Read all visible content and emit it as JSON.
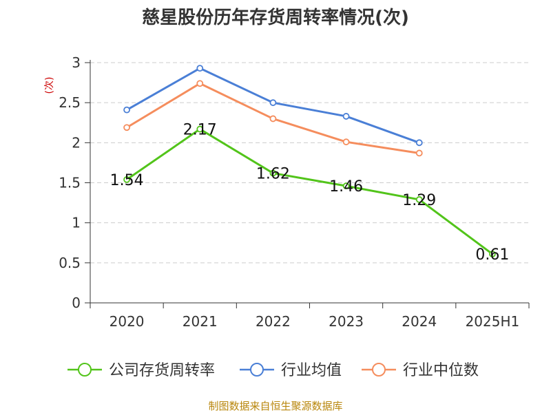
{
  "chart_data": {
    "type": "line",
    "title": "慈星股份历年存货周转率情况(次)",
    "ylabel": "(次)",
    "categories": [
      "2020",
      "2021",
      "2022",
      "2023",
      "2024",
      "2025H1"
    ],
    "ylim": [
      0,
      3
    ],
    "yticks": [
      "0",
      "0.5",
      "1",
      "1.5",
      "2",
      "2.5",
      "3"
    ],
    "grid": true,
    "legend_position": "bottom",
    "series": [
      {
        "name": "公司存货周转率",
        "color": "#52c41a",
        "values": [
          1.54,
          2.17,
          1.62,
          1.46,
          1.29,
          0.61
        ],
        "labels": [
          "1.54",
          "2.17",
          "1.62",
          "1.46",
          "1.29",
          "0.61"
        ]
      },
      {
        "name": "行业均值",
        "color": "#4a7fd6",
        "values": [
          2.41,
          2.93,
          2.5,
          2.33,
          2.0,
          null
        ]
      },
      {
        "name": "行业中位数",
        "color": "#f58d5d",
        "values": [
          2.19,
          2.74,
          2.3,
          2.01,
          1.87,
          null
        ]
      }
    ]
  },
  "source": "制图数据来自恒生聚源数据库"
}
